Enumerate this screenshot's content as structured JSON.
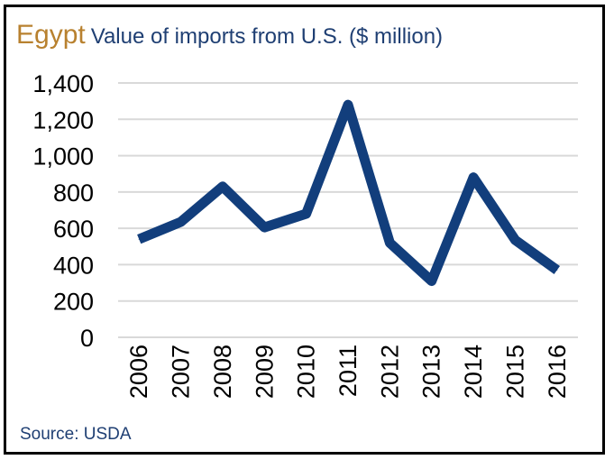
{
  "header": {
    "country": "Egypt",
    "subtitle": "Value of imports from U.S. ($ million)"
  },
  "footer": {
    "source": "Source: USDA"
  },
  "colors": {
    "country": "#b8812f",
    "subtitle": "#1f3f73",
    "line": "#123e7c",
    "grid": "#d9d9d9",
    "axis_text": "#000000",
    "source": "#1f3f73"
  },
  "chart_data": {
    "type": "line",
    "title": "Value of imports from U.S. ($ million)",
    "xlabel": "",
    "ylabel": "",
    "categories": [
      "2006",
      "2007",
      "2008",
      "2009",
      "2010",
      "2011",
      "2012",
      "2013",
      "2014",
      "2015",
      "2016"
    ],
    "series": [
      {
        "values": [
          540,
          635,
          830,
          605,
          680,
          1280,
          520,
          310,
          880,
          535,
          370
        ]
      }
    ],
    "ylim": [
      0,
      1400
    ],
    "yticks": [
      0,
      200,
      400,
      600,
      800,
      1000,
      1200,
      1400
    ],
    "ytick_labels": [
      "0",
      "200",
      "400",
      "600",
      "800",
      "1,000",
      "1,200",
      "1,400"
    ],
    "grid": true,
    "legend": "none"
  }
}
